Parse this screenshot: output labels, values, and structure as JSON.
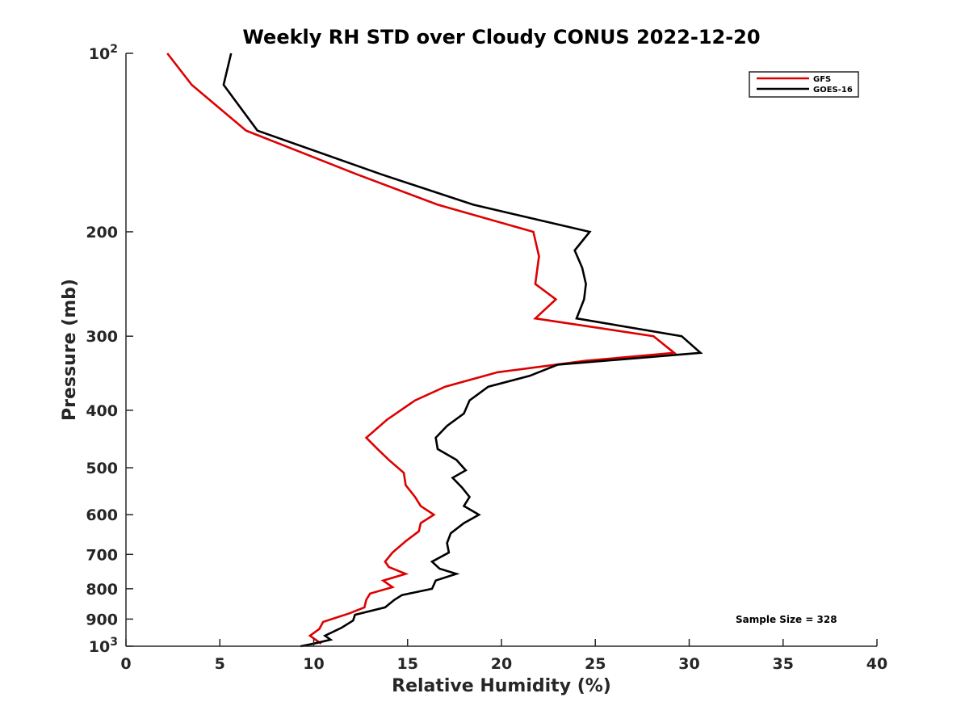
{
  "chart_data": {
    "type": "line",
    "title": "Weekly RH STD over Cloudy CONUS 2022-12-20",
    "xlabel": "Relative Humidity (%)",
    "ylabel": "Pressure (mb)",
    "xlim": [
      0,
      40
    ],
    "ylim": [
      100,
      1000
    ],
    "yscale": "log",
    "yreversed": true,
    "x_ticks": [
      "0",
      "5",
      "10",
      "15",
      "20",
      "25",
      "30",
      "35",
      "40"
    ],
    "y_ticks": [
      {
        "value": 100,
        "label": "10",
        "sup": "2"
      },
      {
        "value": 200,
        "label": "200"
      },
      {
        "value": 300,
        "label": "300"
      },
      {
        "value": 400,
        "label": "400"
      },
      {
        "value": 500,
        "label": "500"
      },
      {
        "value": 600,
        "label": "600"
      },
      {
        "value": 700,
        "label": "700"
      },
      {
        "value": 800,
        "label": "800"
      },
      {
        "value": 900,
        "label": "900"
      },
      {
        "value": 1000,
        "label": "10",
        "sup": "3"
      }
    ],
    "legend_position": "top-right",
    "annotation": "Sample Size = 328",
    "series": [
      {
        "name": "GFS",
        "color": "#dd0000",
        "points": [
          [
            2.2,
            100
          ],
          [
            3.5,
            113
          ],
          [
            6.4,
            135
          ],
          [
            12.3,
            160
          ],
          [
            16.6,
            180
          ],
          [
            21.7,
            200
          ],
          [
            22.0,
            220
          ],
          [
            21.8,
            245
          ],
          [
            22.9,
            260
          ],
          [
            21.8,
            280
          ],
          [
            28.1,
            300
          ],
          [
            29.2,
            320
          ],
          [
            24.5,
            330
          ],
          [
            19.8,
            345
          ],
          [
            17.0,
            365
          ],
          [
            15.4,
            385
          ],
          [
            13.9,
            415
          ],
          [
            12.8,
            445
          ],
          [
            13.4,
            465
          ],
          [
            14.0,
            485
          ],
          [
            14.8,
            510
          ],
          [
            14.9,
            535
          ],
          [
            15.4,
            560
          ],
          [
            15.7,
            580
          ],
          [
            16.4,
            600
          ],
          [
            15.7,
            620
          ],
          [
            15.6,
            640
          ],
          [
            14.9,
            665
          ],
          [
            14.2,
            695
          ],
          [
            13.8,
            720
          ],
          [
            14.0,
            735
          ],
          [
            14.9,
            755
          ],
          [
            13.7,
            775
          ],
          [
            14.2,
            795
          ],
          [
            13.0,
            815
          ],
          [
            12.8,
            835
          ],
          [
            12.7,
            860
          ],
          [
            11.9,
            880
          ],
          [
            10.5,
            910
          ],
          [
            10.3,
            935
          ],
          [
            9.8,
            960
          ],
          [
            10.1,
            975
          ],
          [
            10.4,
            990
          ]
        ]
      },
      {
        "name": "GOES-16",
        "color": "#000000",
        "points": [
          [
            5.6,
            100
          ],
          [
            5.2,
            113
          ],
          [
            7.0,
            135
          ],
          [
            13.6,
            160
          ],
          [
            18.5,
            180
          ],
          [
            24.7,
            200
          ],
          [
            23.9,
            215
          ],
          [
            24.3,
            230
          ],
          [
            24.5,
            245
          ],
          [
            24.4,
            260
          ],
          [
            24.0,
            280
          ],
          [
            29.6,
            300
          ],
          [
            30.6,
            320
          ],
          [
            23.0,
            335
          ],
          [
            21.5,
            350
          ],
          [
            19.3,
            365
          ],
          [
            18.3,
            385
          ],
          [
            18.0,
            405
          ],
          [
            17.1,
            425
          ],
          [
            16.5,
            445
          ],
          [
            16.6,
            465
          ],
          [
            17.6,
            485
          ],
          [
            18.1,
            505
          ],
          [
            17.4,
            520
          ],
          [
            17.9,
            540
          ],
          [
            18.3,
            560
          ],
          [
            18.0,
            580
          ],
          [
            18.8,
            600
          ],
          [
            18.0,
            620
          ],
          [
            17.3,
            645
          ],
          [
            17.1,
            670
          ],
          [
            17.2,
            695
          ],
          [
            16.3,
            720
          ],
          [
            16.7,
            740
          ],
          [
            17.6,
            755
          ],
          [
            16.5,
            775
          ],
          [
            16.3,
            800
          ],
          [
            14.7,
            820
          ],
          [
            14.3,
            835
          ],
          [
            13.8,
            860
          ],
          [
            12.2,
            885
          ],
          [
            12.1,
            905
          ],
          [
            11.5,
            930
          ],
          [
            10.6,
            960
          ],
          [
            10.9,
            975
          ],
          [
            10.0,
            990
          ],
          [
            9.3,
            1000
          ]
        ]
      }
    ]
  }
}
